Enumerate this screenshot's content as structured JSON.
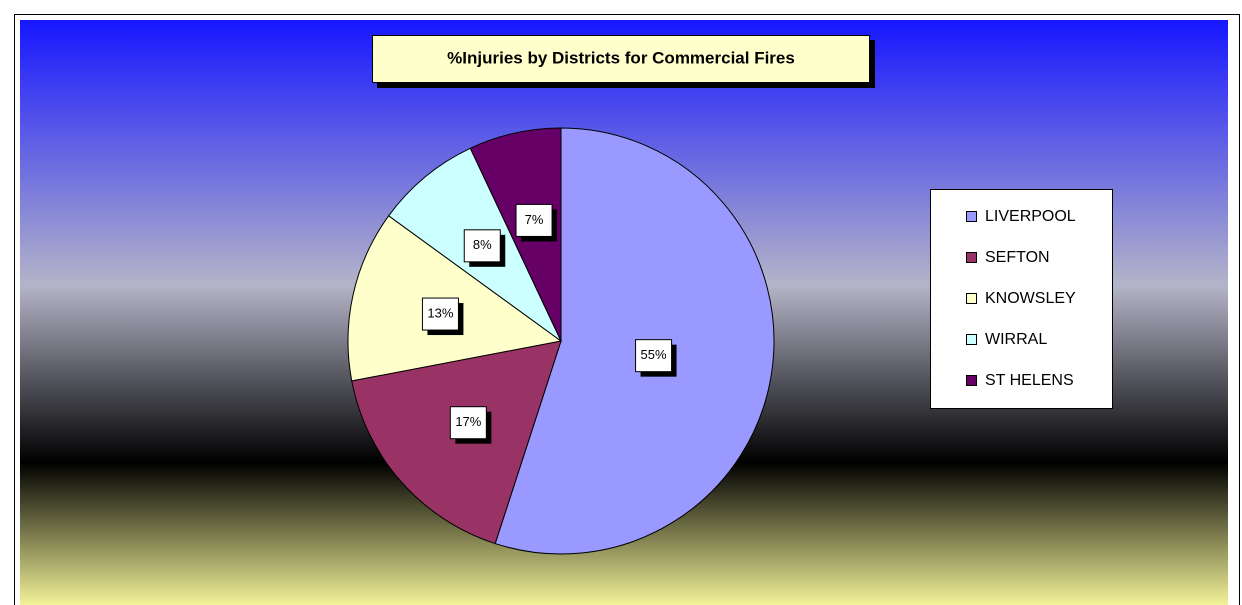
{
  "chart_data": {
    "type": "pie",
    "title": "%Injuries by Districts for Commercial Fires",
    "categories": [
      "LIVERPOOL",
      "SEFTON",
      "KNOWSLEY",
      "WIRRAL",
      "ST HELENS"
    ],
    "values": [
      55,
      17,
      13,
      8,
      7
    ],
    "value_labels": [
      "55%",
      "17%",
      "13%",
      "8%",
      "7%"
    ],
    "colors": [
      "#9999ff",
      "#993366",
      "#ffffcc",
      "#ccffff",
      "#660066"
    ],
    "legend": "right"
  }
}
